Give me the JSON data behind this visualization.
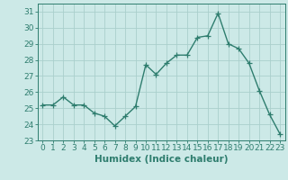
{
  "x": [
    0,
    1,
    2,
    3,
    4,
    5,
    6,
    7,
    8,
    9,
    10,
    11,
    12,
    13,
    14,
    15,
    16,
    17,
    18,
    19,
    20,
    21,
    22,
    23
  ],
  "y": [
    25.2,
    25.2,
    25.7,
    25.2,
    25.2,
    24.7,
    24.5,
    23.9,
    24.5,
    25.1,
    27.7,
    27.1,
    27.8,
    28.3,
    28.3,
    29.4,
    29.5,
    30.9,
    29.0,
    28.7,
    27.8,
    26.1,
    24.6,
    23.4
  ],
  "line_color": "#2e7d6e",
  "marker": "+",
  "marker_size": 4,
  "linewidth": 1.0,
  "bg_color": "#cce9e7",
  "grid_color": "#aacfcc",
  "xlabel": "Humidex (Indice chaleur)",
  "ylim": [
    23,
    31.5
  ],
  "yticks": [
    23,
    24,
    25,
    26,
    27,
    28,
    29,
    30,
    31
  ],
  "tick_color": "#2e7d6e",
  "label_color": "#2e7d6e",
  "xlabel_fontsize": 7.5,
  "tick_fontsize": 6.5
}
